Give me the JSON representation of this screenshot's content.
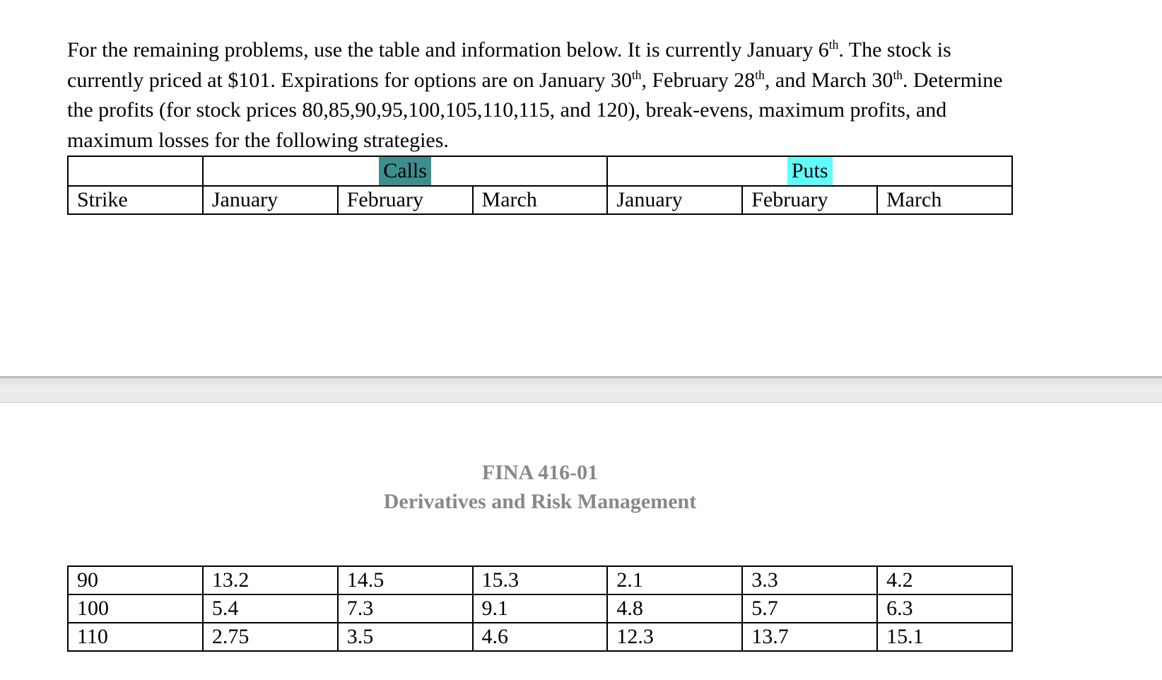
{
  "document": {
    "intro_paragraph": {
      "s1": "For the remaining problems, use the table and information below. It is currently January 6",
      "sup1": "th",
      "s2": ". The stock is currently priced at $101. Expirations for options are on January 30",
      "sup2": "th",
      "s3": ", February 28",
      "sup3": "th",
      "s4": ", and March 30",
      "sup4": "th",
      "s5": ". Determine the profits (for stock prices 80,85,90,95,100,105,110,115, and 120), break-evens, maximum profits, and maximum losses for the following strategies."
    },
    "price_table": {
      "calls_label": "Calls",
      "puts_label": "Puts",
      "header_columns": [
        "Strike",
        "January",
        "February",
        "March",
        "January",
        "February",
        "March"
      ],
      "rows": [
        [
          "90",
          "13.2",
          "14.5",
          "15.3",
          "2.1",
          "3.3",
          "4.2"
        ],
        [
          "100",
          "5.4",
          "7.3",
          "9.1",
          "4.8",
          "5.7",
          "6.3"
        ],
        [
          "110",
          "2.75",
          "3.5",
          "4.6",
          "12.3",
          "13.7",
          "15.1"
        ]
      ]
    },
    "page_header": {
      "course_code": "FINA 416-01",
      "course_title": "Derivatives and Risk Management"
    }
  },
  "colors": {
    "calls_highlight": "#3d8e8e",
    "puts_highlight": "#60fcfc",
    "heading_gray": "#888888"
  }
}
